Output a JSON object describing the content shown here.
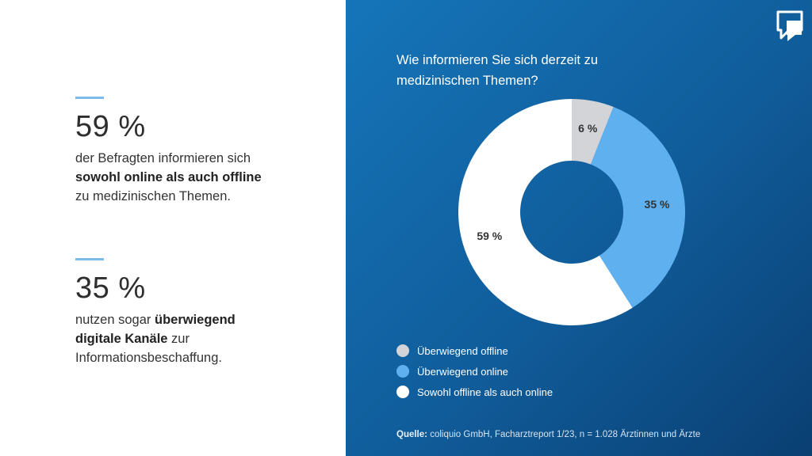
{
  "stats": [
    {
      "value": "59 %",
      "desc_pre": "der Befragten informieren sich",
      "desc_bold": "sowohl online als auch offline",
      "desc_post": "zu medizinischen Themen."
    },
    {
      "value": "35 %",
      "desc_pre": "nutzen sogar",
      "desc_bold": "überwiegend digitale Kanäle",
      "desc_post": "zur Informationsbeschaffung."
    }
  ],
  "chart_data": {
    "type": "pie",
    "title": "Wie informieren Sie sich derzeit zu medizinischen Themen?",
    "legend_position": "bottom-left",
    "categories": [
      "Überwiegend offline",
      "Überwiegend online",
      "Sowohl offline als auch online"
    ],
    "values": [
      6,
      35,
      59
    ],
    "labels": [
      "6 %",
      "35 %",
      "59 %"
    ],
    "colors": [
      "#d2d4d7",
      "#5fb0ee",
      "#ffffff"
    ],
    "hole": true
  },
  "source": {
    "label": "Quelle:",
    "text": "coliquio GmbH, Facharztreport 1/23, n = 1.028 Ärztinnen und Ärzte"
  },
  "logo": {
    "icon": "speech-bubble-logo-icon"
  },
  "colors": {
    "panel_blue": "#1575b9",
    "accent_line": "#7dbbe8"
  }
}
